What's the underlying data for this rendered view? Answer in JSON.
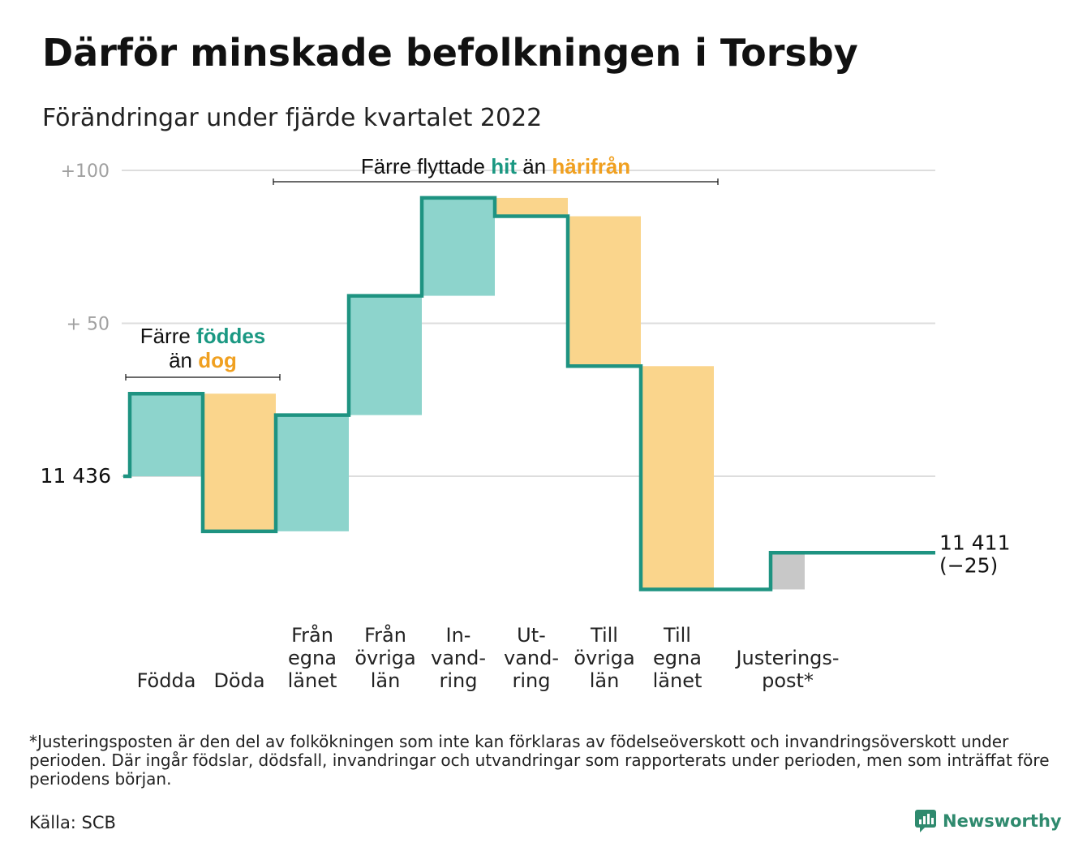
{
  "title": "Därför minskade befolkningen i Torsby",
  "subtitle": "Förändringar under fjärde kvartalet 2022",
  "chart_data": {
    "type": "waterfall",
    "start_value": 11436,
    "start_label": "11 436",
    "end_value": 11411,
    "end_label": "11 411",
    "end_change_label": "(−25)",
    "y_ticks": [
      {
        "value": 100,
        "label": "+100"
      },
      {
        "value": 50,
        "label": "+ 50"
      },
      {
        "value": 0,
        "label": ""
      }
    ],
    "ylim": [
      -37,
      100
    ],
    "grid": true,
    "steps": [
      {
        "label_lines": [
          "Födda"
        ],
        "change": 27,
        "kind": "in"
      },
      {
        "label_lines": [
          "Döda"
        ],
        "change": -45,
        "kind": "out"
      },
      {
        "label_lines": [
          "Från",
          "egna",
          "länet"
        ],
        "change": 38,
        "kind": "in"
      },
      {
        "label_lines": [
          "Från",
          "övriga",
          "län"
        ],
        "change": 39,
        "kind": "in"
      },
      {
        "label_lines": [
          "In-",
          "vand-",
          "ring"
        ],
        "change": 32,
        "kind": "in"
      },
      {
        "label_lines": [
          "Ut-",
          "vand-",
          "ring"
        ],
        "change": -6,
        "kind": "out"
      },
      {
        "label_lines": [
          "Till",
          "övriga",
          "län"
        ],
        "change": -49,
        "kind": "out"
      },
      {
        "label_lines": [
          "Till",
          "egna",
          "länet"
        ],
        "change": -73,
        "kind": "out"
      },
      {
        "label_lines": [
          "Justerings-",
          "post*"
        ],
        "change": 12,
        "kind": "adjust",
        "gap_before": true
      }
    ],
    "annotations": [
      {
        "parts": [
          {
            "text": "Färre ",
            "color": "#111111"
          },
          {
            "text": "föddes",
            "color": "#1a9882"
          }
        ],
        "parts2": [
          {
            "text": "än ",
            "color": "#111111"
          },
          {
            "text": "dog",
            "color": "#f0a020"
          }
        ]
      },
      {
        "parts": [
          {
            "text": "Färre flyttade ",
            "color": "#111111"
          },
          {
            "text": "hit",
            "color": "#1a9882"
          },
          {
            "text": " än ",
            "color": "#111111"
          },
          {
            "text": "härifrån",
            "color": "#f0a020"
          }
        ]
      }
    ],
    "colors": {
      "line": "#1e9381",
      "in": "#8dd4cc",
      "out": "#fad58c",
      "adjust": "#c8c8c8",
      "grid": "#dddddd",
      "tick": "#a0a0a0"
    }
  },
  "footnote": "*Justeringsposten är den del av folkökningen som inte kan förklaras av födelseöverskott och invandringsöverskott under perioden. Där ingår födslar, dödsfall, invandringar och utvandringar som rapporterats under perioden, men som inträffat före periodens början.",
  "source": "Källa: SCB",
  "brand": "Newsworthy"
}
